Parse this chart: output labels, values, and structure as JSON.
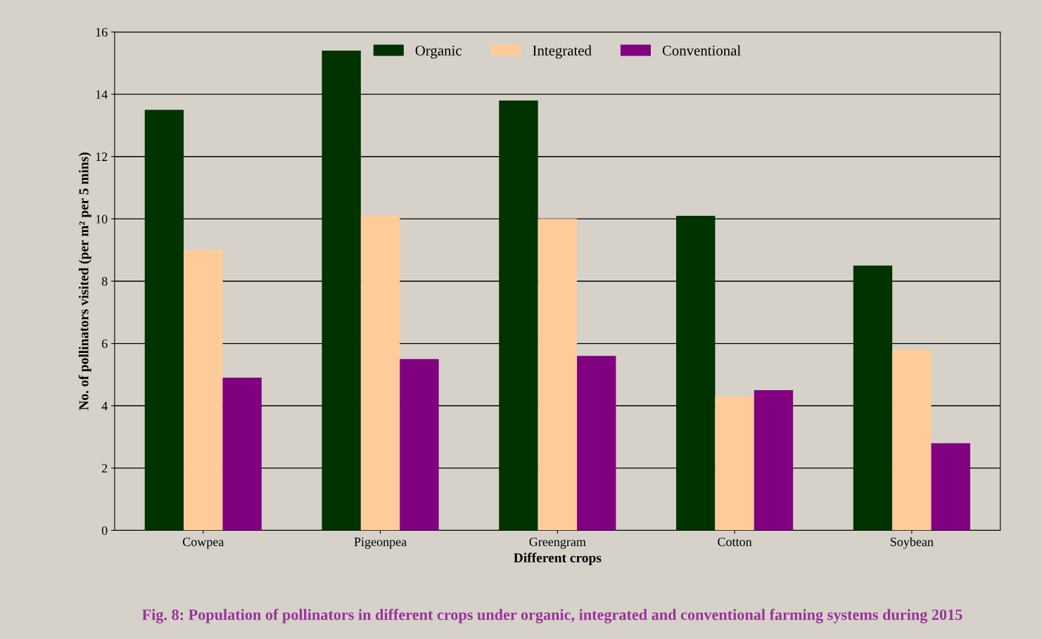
{
  "chart_data": {
    "type": "bar",
    "xlabel": "Different crops",
    "ylabel": "No. of pollinators visited (per m² per 5 mins)",
    "annotations": [
      "Fig. 8: Population of pollinators in different crops under organic, integrated and conventional farming systems during 2015"
    ],
    "categories": [
      "Cowpea",
      "Pigeonpea",
      "Greengram",
      "Cotton",
      "Soybean"
    ],
    "series": [
      {
        "name": "Organic",
        "color": "#003300",
        "values": [
          13.5,
          15.4,
          13.8,
          10.1,
          8.5
        ]
      },
      {
        "name": "Integrated",
        "color": "#ffcc99",
        "values": [
          9.0,
          10.1,
          10.0,
          4.3,
          5.8
        ]
      },
      {
        "name": "Conventional",
        "color": "#800080",
        "values": [
          4.9,
          5.5,
          5.6,
          4.5,
          2.8
        ]
      }
    ],
    "ylim": [
      0,
      16
    ],
    "yticks": [
      0,
      2,
      4,
      6,
      8,
      10,
      12,
      14,
      16
    ],
    "grid": "y",
    "legend": "top"
  }
}
